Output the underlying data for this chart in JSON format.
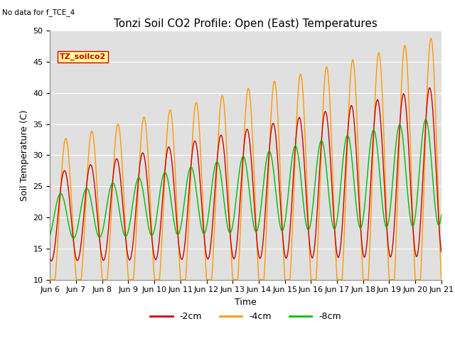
{
  "title": "Tonzi Soil CO2 Profile: Open (East) Temperatures",
  "subtitle": "No data for f_TCE_4",
  "xlabel": "Time",
  "ylabel": "Soil Temperature (C)",
  "ylim": [
    10,
    50
  ],
  "x_tick_labels": [
    "Jun 6",
    "Jun 7",
    "Jun 8",
    "Jun 9",
    "Jun 10",
    "Jun 11",
    "Jun 12",
    "Jun 13",
    "Jun 14",
    "Jun 15",
    "Jun 16",
    "Jun 17",
    "Jun 18",
    "Jun 19",
    "Jun 20",
    "Jun 21"
  ],
  "legend_label": "TZ_soilco2",
  "legend_box_facecolor": "#ffff99",
  "legend_box_edgecolor": "#cc0000",
  "line_colors": {
    "m2cm": "#cc0000",
    "m4cm": "#ff9900",
    "m8cm": "#00bb00"
  },
  "line_labels": [
    "-2cm",
    "-4cm",
    "-8cm"
  ],
  "bg_color": "#e0e0e0",
  "fig_bg": "#ffffff",
  "grid_color": "#ffffff",
  "title_fontsize": 11,
  "axis_label_fontsize": 9,
  "tick_fontsize": 8
}
